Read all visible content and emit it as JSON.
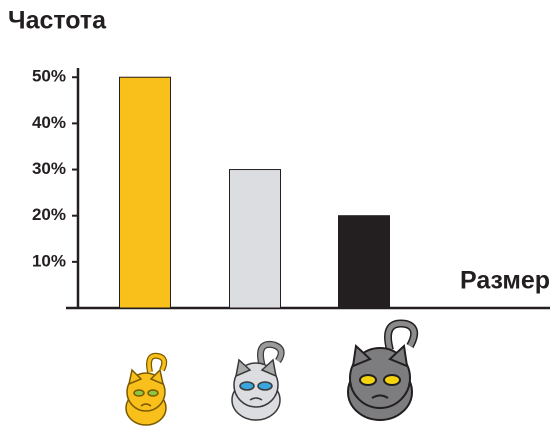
{
  "chart_data": {
    "type": "bar",
    "y_axis_label": "Частота",
    "x_axis_label": "Размер",
    "categories": [
      null,
      null,
      null
    ],
    "values": [
      50,
      30,
      20
    ],
    "colors": [
      "#f9c01b",
      "#dcdde0",
      "#231f20"
    ],
    "ylim": [
      0,
      52
    ],
    "yticks": [
      {
        "value": 10,
        "label": "10%"
      },
      {
        "value": 20,
        "label": "20%"
      },
      {
        "value": 30,
        "label": "30%"
      },
      {
        "value": 40,
        "label": "40%"
      },
      {
        "value": 50,
        "label": "50%"
      }
    ],
    "grid": false
  }
}
